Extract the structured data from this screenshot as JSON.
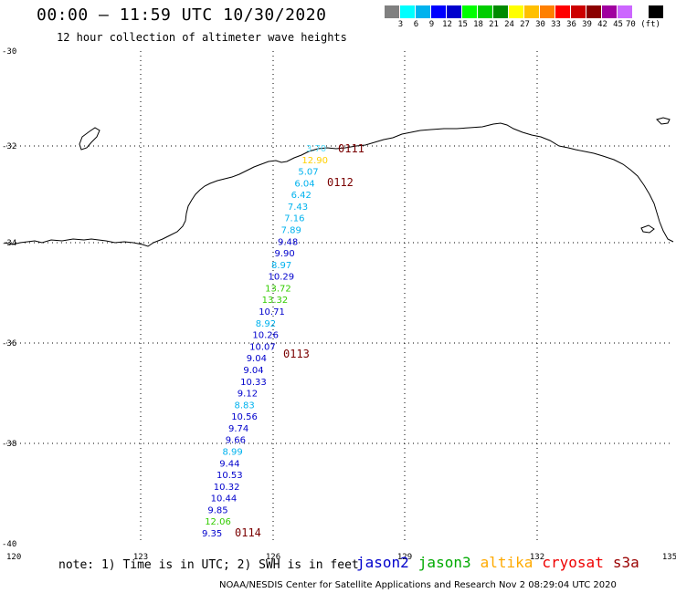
{
  "header": {
    "title": "00:00 – 11:59 UTC 10/30/2020",
    "subtitle": "12 hour collection of altimeter wave heights"
  },
  "colorbar": {
    "colors": [
      "#808080",
      "#00ffff",
      "#00b2ee",
      "#0000ff",
      "#0000cd",
      "#00ff00",
      "#00cd00",
      "#008b00",
      "#ffff00",
      "#ffc000",
      "#ff8000",
      "#ff0000",
      "#cd0000",
      "#8b0000",
      "#a0009f",
      "#cc66ff",
      "#ffffff",
      "#000000"
    ],
    "labels": [
      "3",
      "6",
      "9",
      "12",
      "15",
      "18",
      "21",
      "24",
      "27",
      "30",
      "33",
      "36",
      "39",
      "42",
      "45",
      "70 (ft)"
    ]
  },
  "map": {
    "lat_labels": [
      "-30",
      "-32",
      "-34",
      "-36",
      "-38",
      "-40"
    ],
    "lon_labels": [
      "120",
      "123",
      "126",
      "129",
      "132",
      "135"
    ]
  },
  "swh_colors": {
    "jason2": "#0000cc",
    "jason3": "#00cc00",
    "altika": "#ffaa00",
    "cyan": "#00b2ee",
    "lightcyan": "#55ddff",
    "yellow": "#ffd000",
    "green": "#33cc00"
  },
  "track": [
    {
      "value": "3.70",
      "color": "lightcyan"
    },
    {
      "value": "12.90",
      "color": "yellow"
    },
    {
      "value": "5.07",
      "color": "cyan"
    },
    {
      "value": "6.04",
      "color": "cyan"
    },
    {
      "value": "6.42",
      "color": "cyan"
    },
    {
      "value": "7.43",
      "color": "cyan"
    },
    {
      "value": "7.16",
      "color": "cyan"
    },
    {
      "value": "7.89",
      "color": "cyan"
    },
    {
      "value": "9.48",
      "color": "jason2"
    },
    {
      "value": "9.90",
      "color": "jason2"
    },
    {
      "value": "8.97",
      "color": "cyan"
    },
    {
      "value": "10.29",
      "color": "jason2"
    },
    {
      "value": "13.72",
      "color": "green"
    },
    {
      "value": "13.32",
      "color": "green"
    },
    {
      "value": "10.71",
      "color": "jason2"
    },
    {
      "value": "8.92",
      "color": "cyan"
    },
    {
      "value": "10.26",
      "color": "jason2"
    },
    {
      "value": "10.07",
      "color": "jason2"
    },
    {
      "value": "9.04",
      "color": "jason2"
    },
    {
      "value": "9.04",
      "color": "jason2"
    },
    {
      "value": "10.33",
      "color": "jason2"
    },
    {
      "value": "9.12",
      "color": "jason2"
    },
    {
      "value": "8.83",
      "color": "cyan"
    },
    {
      "value": "10.56",
      "color": "jason2"
    },
    {
      "value": "9.74",
      "color": "jason2"
    },
    {
      "value": "9.66",
      "color": "jason2"
    },
    {
      "value": "8.99",
      "color": "cyan"
    },
    {
      "value": "9.44",
      "color": "jason2"
    },
    {
      "value": "10.53",
      "color": "jason2"
    },
    {
      "value": "10.32",
      "color": "jason2"
    },
    {
      "value": "10.44",
      "color": "jason2"
    },
    {
      "value": "9.85",
      "color": "jason2"
    },
    {
      "value": "12.06",
      "color": "green"
    },
    {
      "value": "9.35",
      "color": "jason2"
    }
  ],
  "pass_labels": [
    "0111",
    "0112",
    "0113",
    "0114"
  ],
  "note": "note:  1) Time is in UTC;  2) SWH is in feet",
  "legend": [
    {
      "name": "jason2",
      "color": "#0000cc"
    },
    {
      "name": "jason3",
      "color": "#00aa00"
    },
    {
      "name": "altika",
      "color": "#ffaa00"
    },
    {
      "name": "cryosat",
      "color": "#ee0000"
    },
    {
      "name": "s3a",
      "color": "#990000"
    }
  ],
  "credit": "NOAA/NESDIS Center for Satellite Applications and Research    Nov  2 08:29:04 UTC 2020"
}
